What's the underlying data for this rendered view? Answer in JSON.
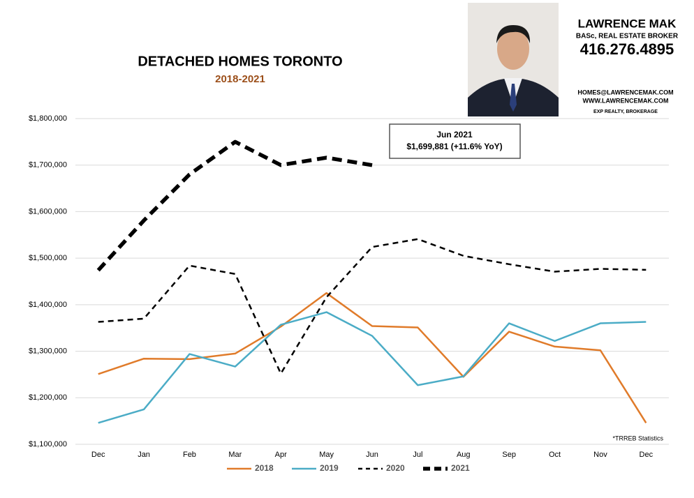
{
  "header": {
    "name": "LAWRENCE MAK",
    "credentials": "BASc, REAL ESTATE BROKER",
    "phone": "416.276.4895",
    "email": "HOMES@LAWRENCEMAK.COM",
    "website": "WWW.LAWRENCEMAK.COM",
    "brokerage": "EXP REALTY, BROKERAGE"
  },
  "chart_data": {
    "type": "line",
    "title": "DETACHED HOMES TORONTO",
    "subtitle": "2018-2021",
    "annotation": {
      "title": "Jun 2021",
      "text": "$1,699,881 (+11.6%  YoY)"
    },
    "footnote": "*TRREB Statistics",
    "categories": [
      "Dec",
      "Jan",
      "Feb",
      "Mar",
      "Apr",
      "May",
      "Jun",
      "Jul",
      "Aug",
      "Sep",
      "Oct",
      "Nov",
      "Dec"
    ],
    "ylim": [
      1100000,
      1800000
    ],
    "yticks": [
      {
        "value": 1100000,
        "label": "$1,100,000"
      },
      {
        "value": 1200000,
        "label": "$1,200,000"
      },
      {
        "value": 1300000,
        "label": "$1,300,000"
      },
      {
        "value": 1400000,
        "label": "$1,400,000"
      },
      {
        "value": 1500000,
        "label": "$1,500,000"
      },
      {
        "value": 1600000,
        "label": "$1,600,000"
      },
      {
        "value": 1700000,
        "label": "$1,700,000"
      },
      {
        "value": 1800000,
        "label": "$1,800,000"
      }
    ],
    "grid": true,
    "legend": "bottom",
    "series": [
      {
        "name": "2018",
        "color": "#e07b2a",
        "line_style": "solid",
        "values": [
          1251000,
          1284000,
          1283000,
          1295000,
          1353000,
          1425000,
          1354000,
          1351000,
          1245000,
          1342000,
          1310000,
          1302000,
          1146000
        ]
      },
      {
        "name": "2019",
        "color": "#4bacc6",
        "line_style": "solid",
        "values": [
          1146000,
          1175000,
          1294000,
          1267000,
          1357000,
          1384000,
          1333000,
          1227000,
          1246000,
          1360000,
          1322000,
          1360000,
          1363000
        ]
      },
      {
        "name": "2020",
        "color": "#000000",
        "line_style": "dashed",
        "values": [
          1363000,
          1370000,
          1484000,
          1466000,
          1252000,
          1416000,
          1524000,
          1541000,
          1505000,
          1487000,
          1471000,
          1477000,
          1475000
        ]
      },
      {
        "name": "2021",
        "color": "#000000",
        "line_style": "thick-dashed",
        "values": [
          1474000,
          1581000,
          1680000,
          1750000,
          1700000,
          1716000,
          1699881,
          null,
          null,
          null,
          null,
          null,
          null
        ]
      }
    ]
  }
}
